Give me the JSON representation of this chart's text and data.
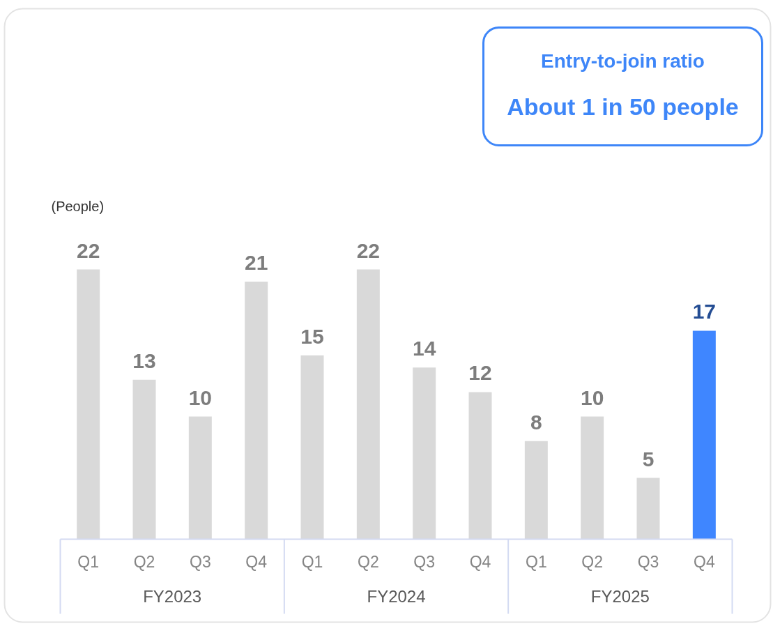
{
  "chart_data": {
    "type": "bar",
    "ylabel": "(People)",
    "categories": [
      "Q1",
      "Q2",
      "Q3",
      "Q4",
      "Q1",
      "Q2",
      "Q3",
      "Q4",
      "Q1",
      "Q2",
      "Q3",
      "Q4"
    ],
    "values": [
      22,
      13,
      10,
      21,
      15,
      22,
      14,
      12,
      8,
      10,
      5,
      17
    ],
    "colors": [
      "#d9d9d9",
      "#d9d9d9",
      "#d9d9d9",
      "#d9d9d9",
      "#d9d9d9",
      "#d9d9d9",
      "#d9d9d9",
      "#d9d9d9",
      "#d9d9d9",
      "#d9d9d9",
      "#d9d9d9",
      "#3f86ff"
    ],
    "data_labels": true,
    "annotations": [
      "Entry-to-join ratio",
      "About 1 in 50 people",
      "FY2023",
      "FY2024",
      "FY2025"
    ]
  }
}
